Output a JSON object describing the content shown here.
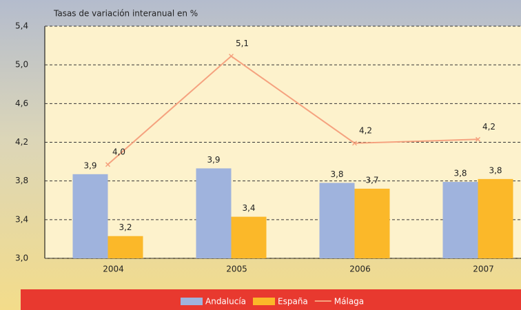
{
  "chart_data": {
    "type": "bar-line",
    "title": "Tasas de variación interanual en %",
    "categories": [
      "2004",
      "2005",
      "2006",
      "2007"
    ],
    "series": [
      {
        "name": "Andalucía",
        "type": "bar",
        "color": "#9fb3dd",
        "values": [
          3.87,
          3.93,
          3.78,
          3.79
        ],
        "value_labels": [
          "3,9",
          "3,9",
          "3,8",
          "3,8"
        ]
      },
      {
        "name": "España",
        "type": "bar",
        "color": "#fbb829",
        "values": [
          3.23,
          3.43,
          3.72,
          3.82
        ],
        "value_labels": [
          "3,2",
          "3,4",
          "3,7",
          "3,8"
        ]
      },
      {
        "name": "Málaga",
        "type": "line",
        "color": "#f5a27f",
        "values": [
          3.97,
          5.09,
          4.19,
          4.23
        ],
        "value_labels": [
          "4,0",
          "5,1",
          "4,2",
          "4,2"
        ]
      }
    ],
    "ylim": [
      3.0,
      5.4
    ],
    "yticks": [
      {
        "value": 3.0,
        "label": "3,0"
      },
      {
        "value": 3.4,
        "label": "3,4"
      },
      {
        "value": 3.8,
        "label": "3,8"
      },
      {
        "value": 4.2,
        "label": "4,2"
      },
      {
        "value": 4.6,
        "label": "4,6"
      },
      {
        "value": 5.0,
        "label": "5,0"
      },
      {
        "value": 5.4,
        "label": "5,4"
      }
    ],
    "grid": true
  }
}
